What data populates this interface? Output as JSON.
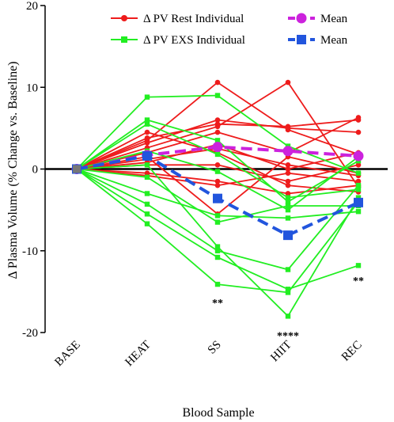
{
  "chart_data": {
    "type": "line",
    "xlabel": "Blood Sample",
    "ylabel": "Δ Plasma Volume (% Change vs. Baseline)",
    "categories": [
      "BASE",
      "HEAT",
      "SS",
      "HIIT",
      "REC"
    ],
    "ylim": [
      -20,
      20
    ],
    "yticks": [
      -20,
      -10,
      0,
      10,
      20
    ],
    "zero_line": true,
    "legend": {
      "placement": "top-right",
      "entries": [
        {
          "label": "Δ PV Rest Individual",
          "color": "#ee1c1c",
          "marker": "circle",
          "line": "solid"
        },
        {
          "label": "Mean",
          "color": "#cc22dd",
          "marker": "circle",
          "line": "dashed"
        },
        {
          "label": "Δ PV EXS Individual",
          "color": "#22ee22",
          "marker": "square",
          "line": "solid"
        },
        {
          "label": "Mean",
          "color": "#2255dd",
          "marker": "square",
          "line": "dashed"
        }
      ]
    },
    "series": [
      {
        "group": "rest",
        "values": [
          0,
          3.5,
          10.6,
          4.8,
          1.8
        ]
      },
      {
        "group": "rest",
        "values": [
          0,
          3.2,
          6.0,
          5.0,
          4.5
        ]
      },
      {
        "group": "rest",
        "values": [
          0,
          2.6,
          5.2,
          10.6,
          -2.2
        ]
      },
      {
        "group": "rest",
        "values": [
          0,
          2.0,
          4.5,
          2.0,
          6.3
        ]
      },
      {
        "group": "rest",
        "values": [
          0,
          3.8,
          5.5,
          5.2,
          6.0
        ]
      },
      {
        "group": "rest",
        "values": [
          0,
          1.2,
          2.5,
          0.5,
          -0.8
        ]
      },
      {
        "group": "rest",
        "values": [
          0,
          0.5,
          0.5,
          -1.5,
          0.5
        ]
      },
      {
        "group": "rest",
        "values": [
          0,
          -0.5,
          -1.5,
          -3.0,
          -2.0
        ]
      },
      {
        "group": "rest",
        "values": [
          0,
          -0.8,
          -2.0,
          -0.5,
          -1.5
        ]
      },
      {
        "group": "rest",
        "values": [
          0,
          1.5,
          -5.5,
          1.5,
          -0.5
        ]
      },
      {
        "group": "rest",
        "values": [
          0,
          0.8,
          3.0,
          0.0,
          2.0
        ]
      },
      {
        "group": "rest",
        "values": [
          0,
          4.5,
          2.0,
          -2.0,
          -2.8
        ]
      },
      {
        "group": "exs",
        "values": [
          0,
          8.8,
          9.0,
          2.8,
          -0.5
        ]
      },
      {
        "group": "exs",
        "values": [
          0,
          6.0,
          3.5,
          -4.0,
          1.0
        ]
      },
      {
        "group": "exs",
        "values": [
          0,
          5.5,
          1.8,
          -3.5,
          -2.5
        ]
      },
      {
        "group": "exs",
        "values": [
          0,
          2.2,
          -0.3,
          -5.0,
          1.5
        ]
      },
      {
        "group": "exs",
        "values": [
          0,
          -1.0,
          -6.5,
          -4.5,
          -4.5
        ]
      },
      {
        "group": "exs",
        "values": [
          0,
          -3.0,
          -5.7,
          -6.0,
          -5.2
        ]
      },
      {
        "group": "exs",
        "values": [
          0,
          -4.3,
          -10.0,
          -12.3,
          -2.0
        ]
      },
      {
        "group": "exs",
        "values": [
          0,
          -5.5,
          -10.8,
          -14.7,
          -11.8
        ]
      },
      {
        "group": "exs",
        "values": [
          0,
          -6.7,
          -14.1,
          -15.1,
          -4.0
        ]
      },
      {
        "group": "exs",
        "values": [
          0,
          0.5,
          -9.5,
          -18.0,
          -3.5
        ]
      }
    ],
    "means": [
      {
        "group": "rest",
        "values": [
          0,
          1.7,
          2.7,
          2.2,
          1.6
        ]
      },
      {
        "group": "exs",
        "values": [
          0,
          1.6,
          -3.6,
          -8.1,
          -4.1
        ]
      }
    ],
    "annotations": [
      {
        "text": "**",
        "x": "SS",
        "y": -16.8
      },
      {
        "text": "****",
        "x": "HIIT",
        "y": -20.8
      },
      {
        "text": "**",
        "x": "REC",
        "y": -14.1
      }
    ]
  }
}
